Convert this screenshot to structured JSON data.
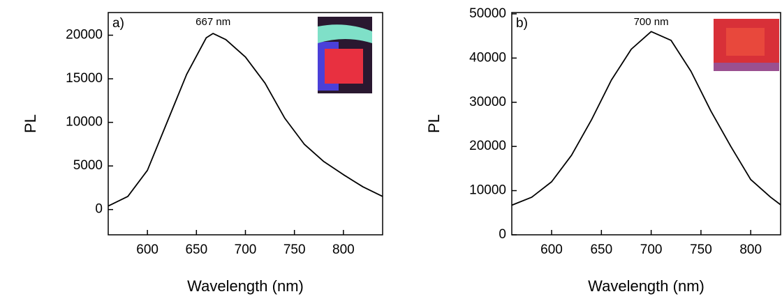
{
  "chart_data": [
    {
      "type": "line",
      "panel_label": "a)",
      "annotation": "667 nm",
      "annotation_x": 667,
      "xlabel": "Wavelength (nm)",
      "ylabel": "PL",
      "x": [
        560,
        580,
        600,
        620,
        640,
        660,
        667,
        680,
        700,
        720,
        740,
        760,
        780,
        800,
        820,
        840
      ],
      "series": [
        {
          "name": "PL",
          "color": "#000000",
          "values": [
            400,
            1500,
            4500,
            10000,
            15500,
            19700,
            20200,
            19500,
            17500,
            14500,
            10500,
            7500,
            5500,
            4000,
            2600,
            1500
          ]
        }
      ],
      "xlim": [
        560,
        840
      ],
      "xticks": [
        600,
        650,
        700,
        750,
        800
      ],
      "ylim": [
        -2900,
        22600
      ],
      "yticks": [
        0,
        5000,
        10000,
        15000,
        20000
      ]
    },
    {
      "type": "line",
      "panel_label": "b)",
      "annotation": "700 nm",
      "annotation_x": 700,
      "xlabel": "Wavelength (nm)",
      "ylabel": "PL",
      "x": [
        560,
        580,
        600,
        620,
        640,
        660,
        680,
        700,
        720,
        740,
        760,
        780,
        800,
        820,
        830
      ],
      "series": [
        {
          "name": "PL",
          "color": "#000000",
          "values": [
            6700,
            8500,
            12000,
            18000,
            26000,
            35000,
            42000,
            46000,
            44000,
            37000,
            28000,
            20000,
            12500,
            8500,
            6800
          ]
        }
      ],
      "xlim": [
        560,
        830
      ],
      "xticks": [
        600,
        650,
        700,
        750,
        800
      ],
      "ylim": [
        0,
        50300
      ],
      "yticks": [
        0,
        10000,
        20000,
        30000,
        40000,
        50000
      ]
    }
  ]
}
